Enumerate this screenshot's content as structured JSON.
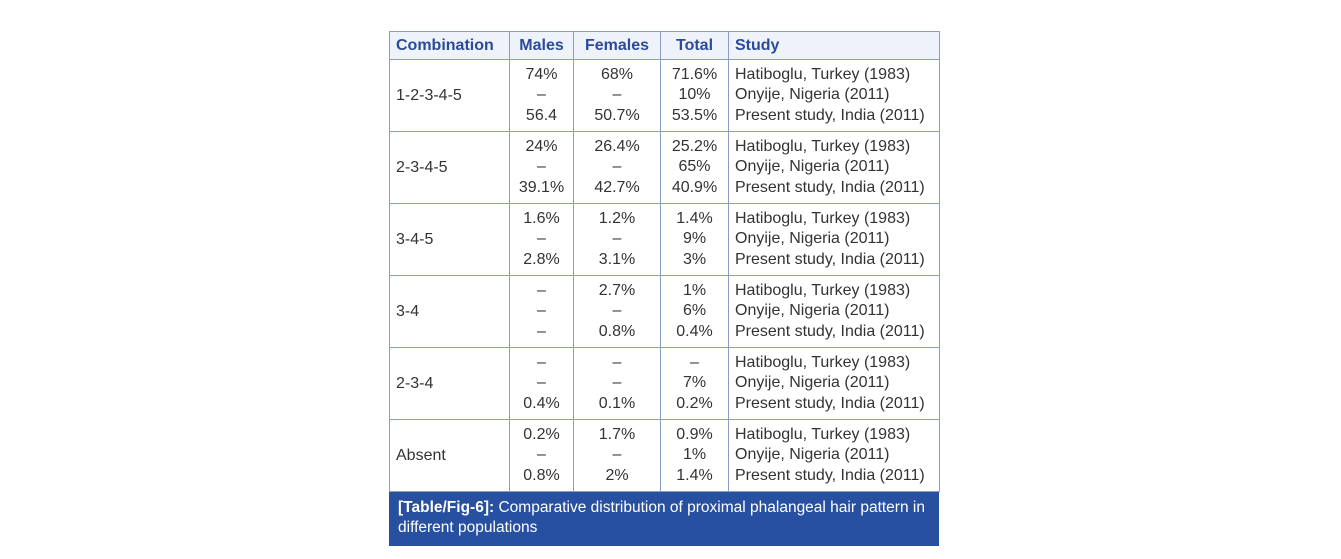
{
  "table": {
    "columns": [
      "Combination",
      "Males",
      "Females",
      "Total",
      "Study"
    ],
    "rows": [
      {
        "combination": "1-2-3-4-5",
        "males": [
          "74%",
          "–",
          "56.4"
        ],
        "females": [
          "68%",
          "–",
          "50.7%"
        ],
        "total": [
          "71.6%",
          "10%",
          "53.5%"
        ],
        "study": [
          "Hatiboglu, Turkey (1983)",
          "Onyije, Nigeria (2011)",
          "Present study, India (2011)"
        ]
      },
      {
        "combination": "2-3-4-5",
        "males": [
          "24%",
          "–",
          "39.1%"
        ],
        "females": [
          "26.4%",
          "–",
          "42.7%"
        ],
        "total": [
          "25.2%",
          "65%",
          "40.9%"
        ],
        "study": [
          "Hatiboglu, Turkey (1983)",
          "Onyije, Nigeria (2011)",
          "Present study, India (2011)"
        ]
      },
      {
        "combination": "3-4-5",
        "males": [
          "1.6%",
          "–",
          "2.8%"
        ],
        "females": [
          "1.2%",
          "–",
          "3.1%"
        ],
        "total": [
          "1.4%",
          "9%",
          "3%"
        ],
        "study": [
          "Hatiboglu, Turkey (1983)",
          "Onyije, Nigeria (2011)",
          "Present study, India (2011)"
        ]
      },
      {
        "combination": "3-4",
        "males": [
          "–",
          "–",
          "–"
        ],
        "females": [
          "2.7%",
          "–",
          "0.8%"
        ],
        "total": [
          "1%",
          "6%",
          "0.4%"
        ],
        "study": [
          "Hatiboglu, Turkey (1983)",
          "Onyije, Nigeria (2011)",
          "Present study, India (2011)"
        ]
      },
      {
        "combination": "2-3-4",
        "males": [
          "–",
          "–",
          "0.4%"
        ],
        "females": [
          "–",
          "–",
          "0.1%"
        ],
        "total": [
          "–",
          "7%",
          "0.2%"
        ],
        "study": [
          "Hatiboglu, Turkey (1983)",
          "Onyije, Nigeria (2011)",
          "Present study, India (2011)"
        ]
      },
      {
        "combination": "Absent",
        "males": [
          "0.2%",
          "–",
          "0.8%"
        ],
        "females": [
          "1.7%",
          "–",
          "2%"
        ],
        "total": [
          "0.9%",
          "1%",
          "1.4%"
        ],
        "study": [
          "Hatiboglu, Turkey (1983)",
          "Onyije, Nigeria (2011)",
          "Present study, India (2011)"
        ]
      }
    ]
  },
  "caption": {
    "label": "[Table/Fig-6]:",
    "text": "Comparative distribution of proximal phalangeal hair pattern in different populations"
  }
}
